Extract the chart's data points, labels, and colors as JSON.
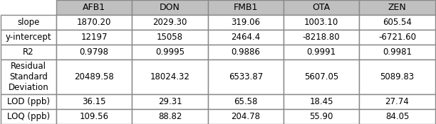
{
  "columns": [
    "AFB1",
    "DON",
    "FMB1",
    "OTA",
    "ZEN"
  ],
  "rows": [
    {
      "label": "slope",
      "values": [
        "1870.20",
        "2029.30",
        "319.06",
        "1003.10",
        "605.54"
      ]
    },
    {
      "label": "y-intercept",
      "values": [
        "12197",
        "15058",
        "2464.4",
        "-8218.80",
        "-6721.60"
      ]
    },
    {
      "label": "R2",
      "values": [
        "0.9798",
        "0.9995",
        "0.9886",
        "0.9991",
        "0.9981"
      ]
    },
    {
      "label": "Residual\nStandard\nDeviation",
      "values": [
        "20489.58",
        "18024.32",
        "6533.87",
        "5607.05",
        "5089.83"
      ]
    },
    {
      "label": "LOD (ppb)",
      "values": [
        "36.15",
        "29.31",
        "65.58",
        "18.45",
        "27.74"
      ]
    },
    {
      "label": "LOQ (ppb)",
      "values": [
        "109.56",
        "88.82",
        "204.78",
        "55.90",
        "84.05"
      ]
    }
  ],
  "header_bg": "#c0c0c0",
  "row_bg_even": "#ffffff",
  "row_bg_odd": "#ffffff",
  "font_size": 8.5,
  "header_font_size": 9.0
}
